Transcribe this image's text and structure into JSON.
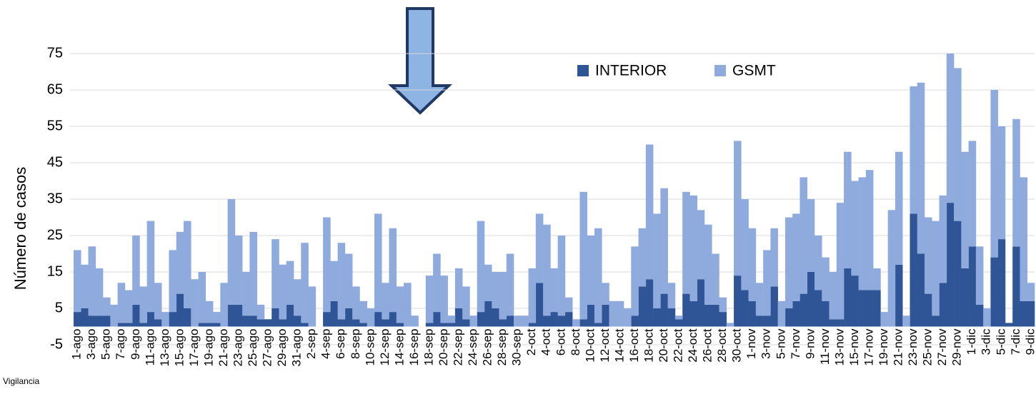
{
  "chart_data": {
    "type": "stacked-bar",
    "y_label": "Número de casos",
    "caption": "Vigilancia",
    "ylim": [
      -5,
      75
    ],
    "yticks": [
      -5,
      5,
      15,
      25,
      35,
      45,
      55,
      65,
      75
    ],
    "grid": true,
    "categories": [
      "1-ago",
      null,
      "3-ago",
      null,
      "5-ago",
      null,
      "7-ago",
      null,
      "9-ago",
      null,
      "11-ago",
      null,
      "13-ago",
      null,
      "15-ago",
      null,
      "17-ago",
      null,
      "19-ago",
      null,
      "21-ago",
      null,
      "23-ago",
      null,
      "25-ago",
      null,
      "27-ago",
      null,
      "29-ago",
      null,
      "31-ago",
      null,
      "2-sep",
      null,
      "4-sep",
      null,
      "6-sep",
      null,
      "8-sep",
      null,
      "10-sep",
      null,
      "12-sep",
      null,
      "14-sep",
      null,
      "16-sep",
      null,
      "18-sep",
      null,
      "20-sep",
      null,
      "22-sep",
      null,
      "24-sep",
      null,
      "26-sep",
      null,
      "28-sep",
      null,
      "30-sep",
      null,
      "2-oct",
      null,
      "4-oct",
      null,
      "6-oct",
      null,
      "8-oct",
      null,
      "10-oct",
      null,
      "12-oct",
      null,
      "14-oct",
      null,
      "16-oct",
      null,
      "18-oct",
      null,
      "20-oct",
      null,
      "22-oct",
      null,
      "24-oct",
      null,
      "26-oct",
      null,
      "28-oct",
      null,
      "30-oct",
      null,
      "1-nov",
      null,
      "3-nov",
      null,
      "5-nov",
      null,
      "7-nov",
      null,
      "9-nov",
      null,
      "11-nov",
      null,
      "13-nov",
      null,
      "15-nov",
      null,
      "17-nov",
      null,
      "19-nov",
      null,
      "21-nov",
      null,
      "23-nov",
      null,
      "25-nov",
      null,
      "27-nov",
      null,
      "29-nov",
      null,
      "1-dic",
      null,
      "3-dic",
      null,
      "5-dic",
      null,
      "7-dic",
      null,
      "9-dic"
    ],
    "series": [
      {
        "name": "INTERIOR",
        "color": "#2f5597",
        "values": [
          4,
          5,
          3,
          3,
          3,
          0,
          1,
          1,
          6,
          1,
          4,
          2,
          0,
          4,
          9,
          5,
          0,
          1,
          1,
          1,
          0,
          6,
          6,
          3,
          3,
          2,
          2,
          5,
          2,
          6,
          3,
          1,
          0,
          0,
          4,
          7,
          2,
          5,
          2,
          1,
          0,
          4,
          2,
          4,
          1,
          0,
          0,
          0,
          1,
          4,
          1,
          1,
          5,
          2,
          0,
          4,
          7,
          5,
          2,
          3,
          0,
          0,
          1,
          12,
          3,
          4,
          3,
          4,
          0,
          2,
          6,
          1,
          6,
          0,
          0,
          0,
          3,
          11,
          13,
          5,
          9,
          5,
          2,
          9,
          7,
          13,
          6,
          6,
          4,
          0,
          14,
          10,
          7,
          3,
          3,
          11,
          0,
          5,
          7,
          9,
          15,
          10,
          7,
          2,
          2,
          16,
          14,
          10,
          10,
          10,
          0,
          0,
          17,
          0,
          31,
          20,
          9,
          3,
          12,
          34,
          29,
          16,
          22,
          6,
          0,
          19,
          24,
          1,
          22,
          7,
          7
        ]
      },
      {
        "name": "GSMT",
        "color": "#8faadc",
        "values": [
          17,
          12,
          19,
          13,
          5,
          6,
          11,
          9,
          19,
          10,
          25,
          10,
          4,
          17,
          17,
          24,
          13,
          14,
          6,
          3,
          12,
          29,
          19,
          12,
          23,
          4,
          0,
          19,
          15,
          12,
          10,
          22,
          11,
          0,
          26,
          11,
          21,
          15,
          9,
          6,
          5,
          27,
          10,
          23,
          10,
          12,
          3,
          0,
          13,
          16,
          13,
          2,
          11,
          9,
          3,
          25,
          10,
          10,
          13,
          17,
          3,
          3,
          15,
          19,
          25,
          12,
          22,
          4,
          2,
          35,
          19,
          26,
          6,
          7,
          7,
          5,
          19,
          16,
          37,
          26,
          29,
          7,
          1,
          28,
          29,
          19,
          22,
          14,
          4,
          1,
          37,
          25,
          20,
          9,
          18,
          16,
          7,
          25,
          24,
          32,
          20,
          15,
          12,
          13,
          32,
          32,
          26,
          31,
          33,
          6,
          4,
          32,
          31,
          3,
          35,
          47,
          21,
          26,
          24,
          41,
          42,
          32,
          29,
          16,
          5,
          46,
          31,
          0,
          35,
          34,
          5
        ]
      }
    ]
  }
}
